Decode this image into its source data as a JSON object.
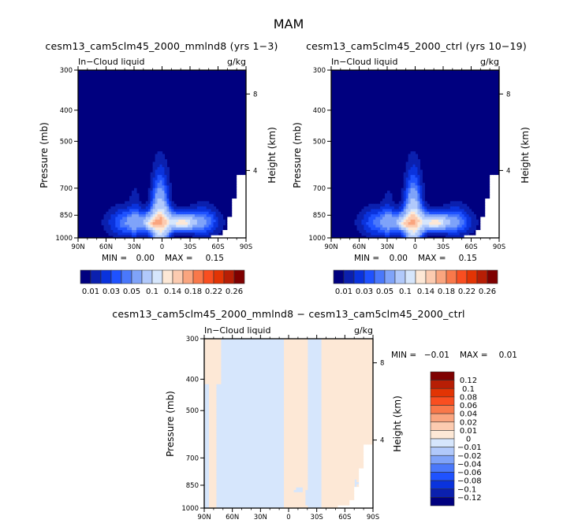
{
  "chart_data": [
    {
      "type": "heatmap",
      "subtype": "filled-contour latitude-pressure cross-section",
      "figure_title": "MAM",
      "title": "cesm13_cam5clm45_2000_mmlnd8 (yrs 1-3)",
      "left_subtitle": "In-Cloud liquid",
      "right_subtitle": "g/kg",
      "xlabel": "",
      "ylabel": "Pressure (mb)",
      "y2label": "Height (km)",
      "x_ticks": [
        "90N",
        "60N",
        "30N",
        "0",
        "30S",
        "60S",
        "90S"
      ],
      "x_range": [
        90,
        -90
      ],
      "y_ticks": [
        300,
        400,
        500,
        700,
        850,
        1000
      ],
      "y_range": [
        1000,
        300
      ],
      "y_scale": "log",
      "y2_ticks": [
        4,
        8
      ],
      "min_label": "MIN =",
      "min_value": "0.00",
      "max_label": "MAX =",
      "max_value": "0.15",
      "colorbar": {
        "orientation": "horizontal",
        "levels": [
          0.01,
          0.02,
          0.03,
          0.04,
          0.05,
          0.07,
          0.1,
          0.12,
          0.14,
          0.16,
          0.18,
          0.2,
          0.22,
          0.24,
          0.26
        ],
        "tick_labels": [
          "0.01",
          "0.03",
          "0.05",
          "0.1",
          "0.14",
          "0.18",
          "0.22",
          "0.26"
        ],
        "colors": [
          "#00007f",
          "#0b20ae",
          "#0a33dd",
          "#1f52ff",
          "#4a78fb",
          "#7fa3f9",
          "#b1c9fb",
          "#d6e6fc",
          "#fde8d6",
          "#fccbb0",
          "#faa57f",
          "#f9784a",
          "#f94e20",
          "#e23404",
          "#b71e05",
          "#7f0000"
        ]
      },
      "features": [
        {
          "description": "Cloud liquid maximum near equator 0-5N extending up to ~520 mb",
          "lat": 0,
          "top_pressure": 520
        },
        {
          "description": "Low-level maximum ~0.14-0.15 g/kg near 20-25S at ~900 mb",
          "lat": -22,
          "pressure": 900
        },
        {
          "description": "Secondary low-level maximum near 10N at ~900 mb",
          "lat": 10,
          "pressure": 905
        },
        {
          "description": "Masked (no data) region below ground near Antarctica 60S-90S",
          "lat_range": [
            -55,
            -90
          ]
        }
      ]
    },
    {
      "type": "heatmap",
      "subtype": "filled-contour latitude-pressure cross-section",
      "title": "cesm13_cam5clm45_2000_ctrl (yrs 10-19)",
      "left_subtitle": "In-Cloud liquid",
      "right_subtitle": "g/kg",
      "ylabel": "Pressure (mb)",
      "y2label": "Height (km)",
      "x_ticks": [
        "90N",
        "60N",
        "30N",
        "0",
        "30S",
        "60S",
        "90S"
      ],
      "x_range": [
        90,
        -90
      ],
      "y_ticks": [
        300,
        400,
        500,
        700,
        850,
        1000
      ],
      "y_range": [
        1000,
        300
      ],
      "y_scale": "log",
      "y2_ticks": [
        4,
        8
      ],
      "min_label": "MIN =",
      "min_value": "0.00",
      "max_label": "MAX =",
      "max_value": "0.15",
      "colorbar": {
        "orientation": "horizontal",
        "levels": [
          0.01,
          0.02,
          0.03,
          0.04,
          0.05,
          0.07,
          0.1,
          0.12,
          0.14,
          0.16,
          0.18,
          0.2,
          0.22,
          0.24,
          0.26
        ],
        "tick_labels": [
          "0.01",
          "0.03",
          "0.05",
          "0.1",
          "0.14",
          "0.18",
          "0.22",
          "0.26"
        ],
        "colors": [
          "#00007f",
          "#0b20ae",
          "#0a33dd",
          "#1f52ff",
          "#4a78fb",
          "#7fa3f9",
          "#b1c9fb",
          "#d6e6fc",
          "#fde8d6",
          "#fccbb0",
          "#faa57f",
          "#f9784a",
          "#f94e20",
          "#e23404",
          "#b71e05",
          "#7f0000"
        ]
      }
    },
    {
      "type": "heatmap",
      "subtype": "filled-contour difference latitude-pressure cross-section",
      "title": "cesm13_cam5clm45_2000_mmlnd8 - cesm13_cam5clm45_2000_ctrl",
      "left_subtitle": "In-Cloud liquid",
      "right_subtitle": "g/kg",
      "ylabel": "Pressure (mb)",
      "y2label": "Height (km)",
      "x_ticks": [
        "90N",
        "60N",
        "30N",
        "0",
        "30S",
        "60S",
        "90S"
      ],
      "x_range": [
        90,
        -90
      ],
      "y_ticks": [
        300,
        400,
        500,
        700,
        850,
        1000
      ],
      "y_range": [
        1000,
        300
      ],
      "y_scale": "log",
      "y2_ticks": [
        4,
        8
      ],
      "min_label": "MIN =",
      "min_value": "-0.01",
      "max_label": "MAX =",
      "max_value": "0.01",
      "colorbar": {
        "orientation": "vertical",
        "levels": [
          -0.12,
          -0.1,
          -0.08,
          -0.06,
          -0.04,
          -0.02,
          -0.01,
          0,
          0.01,
          0.02,
          0.04,
          0.06,
          0.08,
          0.1,
          0.12
        ],
        "tick_labels": [
          "0.12",
          "0.1",
          "0.08",
          "0.06",
          "0.04",
          "0.02",
          "0.01",
          "0",
          "-0.01",
          "-0.02",
          "-0.04",
          "-0.06",
          "-0.08",
          "-0.1",
          "-0.12"
        ],
        "colors": [
          "#7f0000",
          "#b71e05",
          "#e23404",
          "#f94e20",
          "#f9784a",
          "#faa57f",
          "#fccbb0",
          "#fde8d6",
          "#d6e6fc",
          "#b1c9fb",
          "#7fa3f9",
          "#4a78fb",
          "#1f52ff",
          "#0a33dd",
          "#0b20ae",
          "#00007f"
        ]
      },
      "features": [
        {
          "description": "Mostly weak positive (0 to 0.01) between 90N and ~5N",
          "lat_range": [
            90,
            5
          ]
        },
        {
          "description": "Weak negative (-0.01 to 0) band from equator to ~30S in mid/upper troposphere",
          "lat_range": [
            0,
            -30
          ]
        },
        {
          "description": "Small 0.01-0.02 patch near 5-15S at ~880 mb",
          "lat": -10,
          "pressure": 880
        },
        {
          "description": "Mostly weak negative from 40S to 90S",
          "lat_range": [
            -40,
            -90
          ]
        }
      ]
    }
  ]
}
